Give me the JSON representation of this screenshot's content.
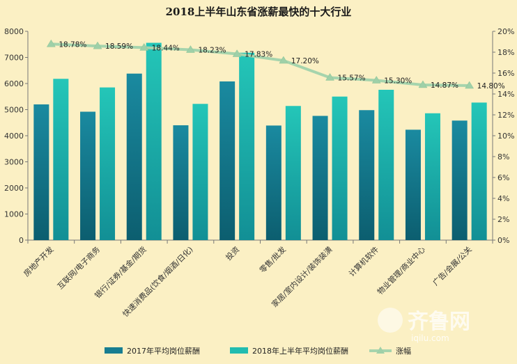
{
  "chart_data": {
    "type": "bar",
    "title": "2018上半年山东省涨薪最快的十大行业",
    "categories": [
      "房地产开发",
      "互联网/电子商务",
      "银行/证券/基金/期货",
      "快速消费品(饮食/烟酒/日化)",
      "投资",
      "零售/批发",
      "家居/室内设计/装饰装潢",
      "计算机软件",
      "物业管理/商业中心",
      "广告/会展/公关"
    ],
    "series": [
      {
        "name": "2017年平均岗位薪酬",
        "type": "bar",
        "axis": "left",
        "color": "#177d91",
        "values": [
          5200,
          4920,
          6380,
          4400,
          6080,
          4390,
          4760,
          4980,
          4230,
          4580
        ]
      },
      {
        "name": "2018年上半年平均岗位薪酬",
        "type": "bar",
        "axis": "left",
        "color": "#21bcb0",
        "values": [
          6180,
          5850,
          7560,
          5220,
          7180,
          5140,
          5500,
          5760,
          4860,
          5270
        ]
      },
      {
        "name": "涨幅",
        "type": "line",
        "axis": "right",
        "color": "#a6d4ad",
        "values": [
          18.78,
          18.59,
          18.44,
          18.23,
          17.83,
          17.2,
          15.57,
          15.3,
          14.87,
          14.8
        ],
        "labels": [
          "18.78%",
          "18.59%",
          "18.44%",
          "18.23%",
          "17.83%",
          "17.20%",
          "15.57%",
          "15.30%",
          "14.87%",
          "14.80%"
        ]
      }
    ],
    "y_left": {
      "min": 0,
      "max": 8000,
      "step": 1000,
      "tick_labels": [
        "0",
        "1000",
        "2000",
        "3000",
        "4000",
        "5000",
        "6000",
        "7000",
        "8000"
      ]
    },
    "y_right": {
      "min": 0,
      "max": 20,
      "step": 2,
      "tick_labels": [
        "0%",
        "2%",
        "4%",
        "6%",
        "8%",
        "10%",
        "12%",
        "14%",
        "16%",
        "18%",
        "20%"
      ]
    },
    "grid": false,
    "legend_position": "bottom"
  },
  "watermark": {
    "brand": "齐鲁网",
    "url": "iqilu.com"
  }
}
